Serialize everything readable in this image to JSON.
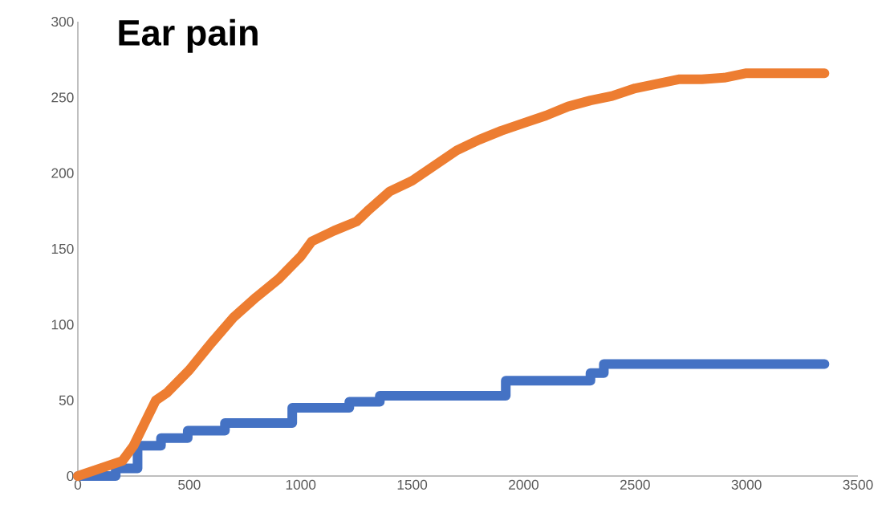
{
  "chart_data": {
    "type": "line",
    "title": "Ear pain",
    "xlim": [
      0,
      3500
    ],
    "ylim": [
      0,
      300
    ],
    "xticks": [
      0,
      500,
      1000,
      1500,
      2000,
      2500,
      3000,
      3500
    ],
    "yticks": [
      0,
      50,
      100,
      150,
      200,
      250,
      300
    ],
    "series": [
      {
        "type": "step",
        "color": "#4472c4",
        "x": [
          0,
          170,
          268,
          373,
          493,
          660,
          962,
          1218,
          1355,
          1920,
          2300,
          2360,
          3350
        ],
        "values": [
          0,
          5,
          20,
          25,
          30,
          35,
          45,
          49,
          53,
          63,
          68,
          74,
          74
        ]
      },
      {
        "color": "#ed7d31",
        "x": [
          0,
          100,
          200,
          250,
          300,
          350,
          400,
          500,
          600,
          700,
          800,
          900,
          1000,
          1050,
          1150,
          1250,
          1300,
          1400,
          1500,
          1600,
          1700,
          1800,
          1900,
          2000,
          2100,
          2200,
          2300,
          2400,
          2500,
          2600,
          2700,
          2800,
          2900,
          3000,
          3100,
          3350
        ],
        "values": [
          0,
          5,
          10,
          20,
          35,
          50,
          55,
          70,
          88,
          105,
          118,
          130,
          145,
          155,
          162,
          168,
          175,
          188,
          195,
          205,
          215,
          222,
          228,
          233,
          238,
          244,
          248,
          251,
          256,
          259,
          262,
          262,
          263,
          266,
          266,
          266
        ]
      }
    ]
  }
}
